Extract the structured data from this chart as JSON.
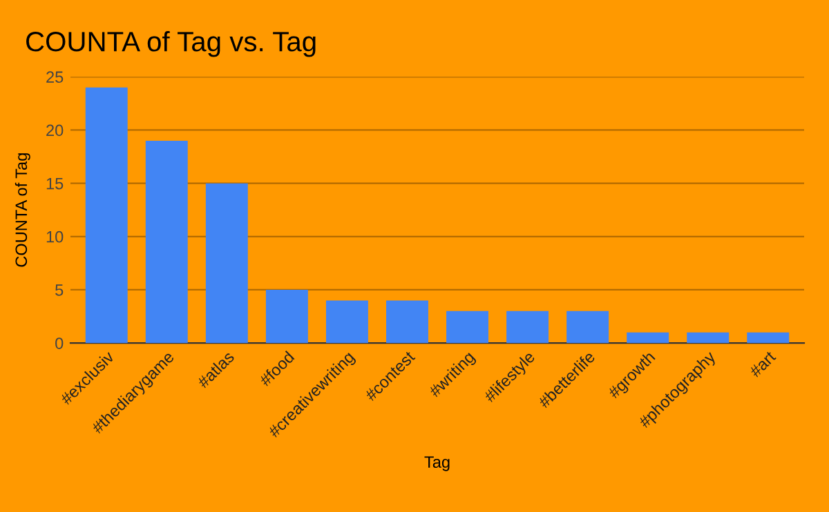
{
  "chart_data": {
    "type": "bar",
    "title": "COUNTA of Tag vs. Tag",
    "xlabel": "Tag",
    "ylabel": "COUNTA of Tag",
    "categories": [
      "#exclusiv",
      "#thediarygame",
      "#atlas",
      "#food",
      "#creativewriting",
      "#contest",
      "#writing",
      "#lifestyle",
      "#betterlife",
      "#growth",
      "#photography",
      "#art"
    ],
    "values": [
      24,
      19,
      15,
      5,
      4,
      4,
      3,
      3,
      3,
      1,
      1,
      1
    ],
    "color": "#4285f4",
    "ylim": [
      0,
      25
    ],
    "yticks": [
      0,
      5,
      10,
      15,
      20,
      25
    ],
    "grid": "y",
    "legend": false
  }
}
